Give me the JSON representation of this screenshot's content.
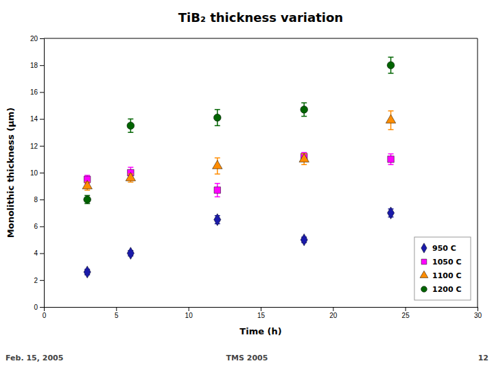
{
  "chart_data": {
    "type": "scatter",
    "title": "TiB₂ thickness variation",
    "x_label": "Time (h)",
    "y_label": "Monolithic thickness (μm)",
    "x": [
      3,
      6,
      12,
      18,
      24
    ],
    "xlim": [
      0,
      30
    ],
    "ylim": [
      0,
      20
    ],
    "xticks": [
      0,
      5,
      10,
      15,
      20,
      25,
      30
    ],
    "yticks": [
      0,
      2,
      4,
      6,
      8,
      10,
      12,
      14,
      16,
      18,
      20
    ],
    "grid": false,
    "legend": "lower right",
    "series": [
      {
        "name": "950 C",
        "color": "#1a1aaa",
        "marker": "diamond",
        "values": [
          2.6,
          4.0,
          6.5,
          5.0,
          7.0
        ],
        "errors": [
          0.2,
          0.2,
          0.3,
          0.2,
          0.3
        ]
      },
      {
        "name": "1050 C",
        "color": "#FF00FF",
        "marker": "square",
        "values": [
          9.5,
          10.0,
          8.7,
          11.2,
          11.0
        ],
        "errors": [
          0.3,
          0.4,
          0.5,
          0.3,
          0.4
        ]
      },
      {
        "name": "1100 C",
        "color": "#FF8C00",
        "marker": "triangle",
        "values": [
          9.0,
          9.6,
          10.5,
          11.0,
          13.9
        ],
        "errors": [
          0.3,
          0.3,
          0.6,
          0.4,
          0.7
        ]
      },
      {
        "name": "1200 C",
        "color": "#006400",
        "marker": "circle",
        "values": [
          8.0,
          13.5,
          14.1,
          14.7,
          18.0
        ],
        "errors": [
          0.3,
          0.5,
          0.6,
          0.5,
          0.6
        ]
      }
    ],
    "annotations": [
      "Feb. 15, 2005",
      "TMS 2005",
      "12"
    ]
  }
}
